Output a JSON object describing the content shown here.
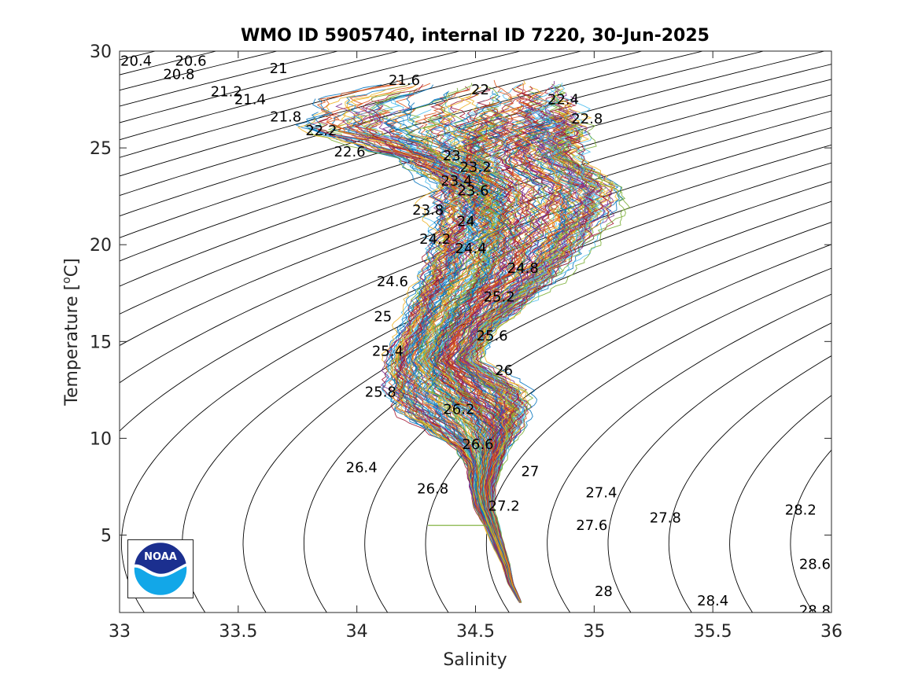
{
  "chart_data": {
    "type": "line",
    "title": "WMO ID 5905740, internal ID 7220, 30-Jun-2025",
    "xlabel": "Salinity",
    "ylabel_text": "Temperature [",
    "ylabel_sup": "o",
    "ylabel_unit": "C]",
    "xlim": [
      33,
      36
    ],
    "ylim": [
      1,
      30
    ],
    "x_ticks": [
      33,
      33.5,
      34,
      34.5,
      35,
      35.5,
      36
    ],
    "x_tick_labels": [
      "33",
      "33.5",
      "34",
      "34.5",
      "35",
      "35.5",
      "36"
    ],
    "y_ticks": [
      5,
      10,
      15,
      20,
      25,
      30
    ],
    "y_tick_labels": [
      "5",
      "10",
      "15",
      "20",
      "25",
      "30"
    ],
    "grid": false,
    "isopycnals": {
      "step": 0.2,
      "range": [
        20.4,
        28.8
      ],
      "color": "#000000",
      "labels": [
        {
          "text": "20.4",
          "s": 33.07,
          "t": 29.5
        },
        {
          "text": "20.6",
          "s": 33.3,
          "t": 29.5
        },
        {
          "text": "20.8",
          "s": 33.25,
          "t": 28.8
        },
        {
          "text": "21",
          "s": 33.67,
          "t": 29.1
        },
        {
          "text": "21.2",
          "s": 33.45,
          "t": 27.9
        },
        {
          "text": "21.4",
          "s": 33.55,
          "t": 27.5
        },
        {
          "text": "21.6",
          "s": 34.2,
          "t": 28.5
        },
        {
          "text": "21.8",
          "s": 33.7,
          "t": 26.6
        },
        {
          "text": "22",
          "s": 34.52,
          "t": 28.0
        },
        {
          "text": "22.2",
          "s": 33.85,
          "t": 25.9
        },
        {
          "text": "22.4",
          "s": 34.87,
          "t": 27.5
        },
        {
          "text": "22.6",
          "s": 33.97,
          "t": 24.8
        },
        {
          "text": "22.8",
          "s": 34.97,
          "t": 26.5
        },
        {
          "text": "23",
          "s": 34.4,
          "t": 24.6
        },
        {
          "text": "23.2",
          "s": 34.5,
          "t": 24.0
        },
        {
          "text": "23.4",
          "s": 34.42,
          "t": 23.3
        },
        {
          "text": "23.6",
          "s": 34.49,
          "t": 22.8
        },
        {
          "text": "23.8",
          "s": 34.3,
          "t": 21.8
        },
        {
          "text": "24",
          "s": 34.46,
          "t": 21.2
        },
        {
          "text": "24.2",
          "s": 34.33,
          "t": 20.3
        },
        {
          "text": "24.4",
          "s": 34.48,
          "t": 19.8
        },
        {
          "text": "24.6",
          "s": 34.15,
          "t": 18.1
        },
        {
          "text": "24.8",
          "s": 34.7,
          "t": 18.8
        },
        {
          "text": "25",
          "s": 34.11,
          "t": 16.3
        },
        {
          "text": "25.2",
          "s": 34.6,
          "t": 17.3
        },
        {
          "text": "25.4",
          "s": 34.13,
          "t": 14.5
        },
        {
          "text": "25.6",
          "s": 34.57,
          "t": 15.3
        },
        {
          "text": "25.8",
          "s": 34.1,
          "t": 12.4
        },
        {
          "text": "26",
          "s": 34.62,
          "t": 13.5
        },
        {
          "text": "26.2",
          "s": 34.43,
          "t": 11.5
        },
        {
          "text": "26.4",
          "s": 34.02,
          "t": 8.5
        },
        {
          "text": "26.6",
          "s": 34.51,
          "t": 9.7
        },
        {
          "text": "26.8",
          "s": 34.32,
          "t": 7.4
        },
        {
          "text": "27",
          "s": 34.73,
          "t": 8.3
        },
        {
          "text": "27.2",
          "s": 34.62,
          "t": 6.5
        },
        {
          "text": "27.4",
          "s": 35.03,
          "t": 7.2
        },
        {
          "text": "27.6",
          "s": 34.99,
          "t": 5.5
        },
        {
          "text": "27.8",
          "s": 35.3,
          "t": 5.9
        },
        {
          "text": "28",
          "s": 35.04,
          "t": 2.1
        },
        {
          "text": "28.2",
          "s": 35.87,
          "t": 6.3
        },
        {
          "text": "28.4",
          "s": 35.5,
          "t": 1.6
        },
        {
          "text": "28.6",
          "s": 35.93,
          "t": 3.5
        },
        {
          "text": "28.8",
          "s": 35.93,
          "t": 1.1
        }
      ]
    },
    "profiles": {
      "count": 220,
      "description_of_envelope_note": "",
      "colors": [
        "#0072BD",
        "#D95319",
        "#EDB120",
        "#7E2F8E",
        "#77AC30",
        "#4DBEEE",
        "#A2142F"
      ],
      "mean_curve": [
        {
          "t": 28.3,
          "s": 34.6
        },
        {
          "t": 27.5,
          "s": 34.6
        },
        {
          "t": 26.0,
          "s": 34.55
        },
        {
          "t": 24.5,
          "s": 34.5
        },
        {
          "t": 23.0,
          "s": 34.58
        },
        {
          "t": 21.5,
          "s": 34.62
        },
        {
          "t": 20.0,
          "s": 34.6
        },
        {
          "t": 18.5,
          "s": 34.55
        },
        {
          "t": 17.0,
          "s": 34.45
        },
        {
          "t": 15.5,
          "s": 34.38
        },
        {
          "t": 14.0,
          "s": 34.33
        },
        {
          "t": 12.5,
          "s": 34.4
        },
        {
          "t": 11.5,
          "s": 34.5
        },
        {
          "t": 10.5,
          "s": 34.55
        },
        {
          "t": 9.5,
          "s": 34.55
        },
        {
          "t": 8.5,
          "s": 34.54
        },
        {
          "t": 7.5,
          "s": 34.53
        },
        {
          "t": 6.5,
          "s": 34.54
        },
        {
          "t": 5.5,
          "s": 34.57
        },
        {
          "t": 4.5,
          "s": 34.6
        },
        {
          "t": 3.5,
          "s": 34.63
        },
        {
          "t": 2.5,
          "s": 34.65
        },
        {
          "t": 1.5,
          "s": 34.69
        }
      ],
      "spread": [
        {
          "t": 28.3,
          "left": 0.55,
          "right": 0.35
        },
        {
          "t": 27.5,
          "left": 0.9,
          "right": 0.35
        },
        {
          "t": 26.0,
          "left": 0.9,
          "right": 0.45
        },
        {
          "t": 24.5,
          "left": 0.35,
          "right": 0.5
        },
        {
          "t": 23.0,
          "left": 0.25,
          "right": 0.6
        },
        {
          "t": 21.5,
          "left": 0.3,
          "right": 0.5
        },
        {
          "t": 20.0,
          "left": 0.3,
          "right": 0.4
        },
        {
          "t": 18.5,
          "left": 0.3,
          "right": 0.35
        },
        {
          "t": 17.0,
          "left": 0.25,
          "right": 0.3
        },
        {
          "t": 15.5,
          "left": 0.22,
          "right": 0.22
        },
        {
          "t": 14.0,
          "left": 0.23,
          "right": 0.2
        },
        {
          "t": 12.5,
          "left": 0.3,
          "right": 0.35
        },
        {
          "t": 11.5,
          "left": 0.38,
          "right": 0.25
        },
        {
          "t": 10.5,
          "left": 0.3,
          "right": 0.15
        },
        {
          "t": 9.5,
          "left": 0.15,
          "right": 0.1
        },
        {
          "t": 8.5,
          "left": 0.08,
          "right": 0.08
        },
        {
          "t": 7.5,
          "left": 0.06,
          "right": 0.06
        },
        {
          "t": 6.5,
          "left": 0.05,
          "right": 0.04
        },
        {
          "t": 5.5,
          "left": 0.04,
          "right": 0.03
        },
        {
          "t": 4.5,
          "left": 0.03,
          "right": 0.02
        },
        {
          "t": 3.5,
          "left": 0.02,
          "right": 0.015
        },
        {
          "t": 2.5,
          "left": 0.015,
          "right": 0.01
        },
        {
          "t": 1.5,
          "left": 0.005,
          "right": 0.005
        }
      ],
      "outlier_segment": {
        "s": [
          34.3,
          34.55
        ],
        "t": [
          5.5,
          5.5
        ],
        "color": "#77AC30"
      }
    }
  },
  "logo": {
    "name": "noaa-logo",
    "text": "NOAA",
    "colors": {
      "top": "#1b2f8f",
      "bottom": "#12a7e8",
      "wave": "#ffffff"
    }
  }
}
